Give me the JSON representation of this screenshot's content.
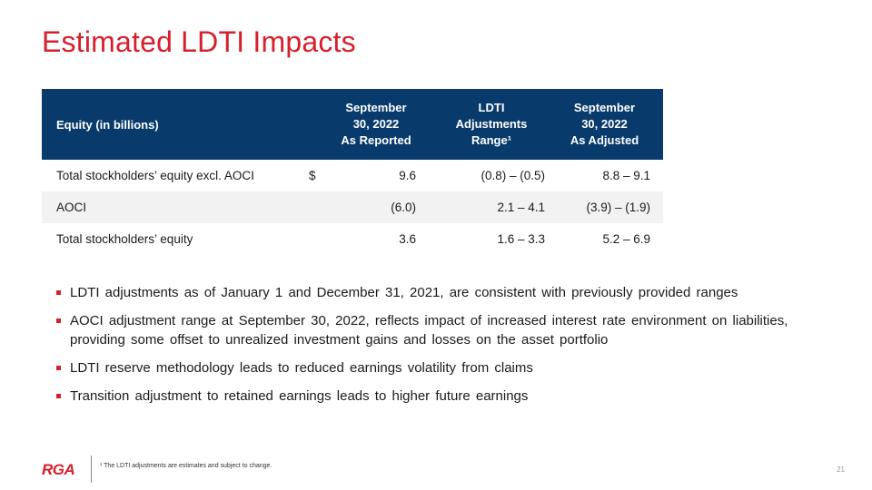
{
  "title": "Estimated LDTI Impacts",
  "table": {
    "header": {
      "label": "Equity (in billions)",
      "col1": [
        "September",
        "30, 2022",
        "As Reported"
      ],
      "col2": [
        "LDTI",
        "Adjustments",
        "Range¹"
      ],
      "col3": [
        "September",
        "30, 2022",
        "As Adjusted"
      ]
    },
    "rows": [
      {
        "label": "Total stockholders’ equity excl. AOCI",
        "currency": "$",
        "reported": "9.6",
        "adjustment": "(0.8) – (0.5)",
        "adjusted": "8.8 – 9.1"
      },
      {
        "label": "AOCI",
        "currency": "",
        "reported": "(6.0)",
        "adjustment": "2.1 – 4.1",
        "adjusted": "(3.9) – (1.9)"
      },
      {
        "label": "Total stockholders’ equity",
        "currency": "",
        "reported": "3.6",
        "adjustment": "1.6 – 3.3",
        "adjusted": "5.2 – 6.9"
      }
    ]
  },
  "bullets": [
    "LDTI adjustments as of January 1 and December 31, 2021, are consistent with previously provided ranges",
    "AOCI adjustment range at September 30, 2022, reflects impact of increased interest rate environment on liabilities, providing some offset to unrealized investment gains and losses on the asset portfolio",
    "LDTI reserve methodology leads to reduced earnings volatility from claims",
    "Transition adjustment to retained earnings leads to higher future earnings"
  ],
  "footer": {
    "logo": "RGA",
    "footnote": "¹ The LDTI adjustments are estimates and subject to change.",
    "page_number": "21"
  },
  "colors": {
    "accent_red": "#d61f2c",
    "header_navy": "#083a6b",
    "row_shade": "#f2f2f2"
  }
}
